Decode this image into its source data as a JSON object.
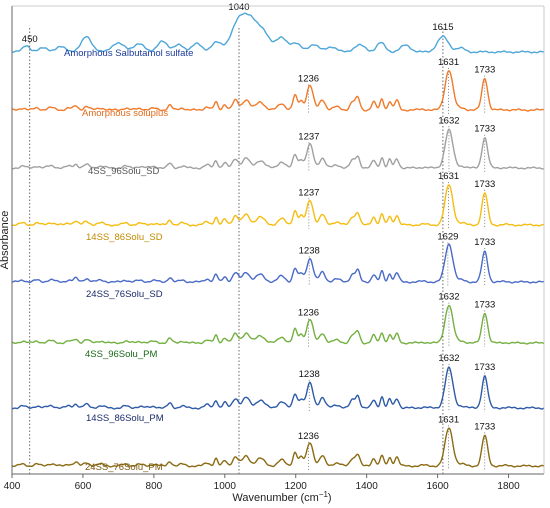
{
  "chart_data": {
    "type": "line",
    "xlabel_prefix": "Wavenumber (cm",
    "xlabel_sup": "−1",
    "xlabel_suffix": ")",
    "ylabel": "Absorbance",
    "xlim": [
      400,
      1900
    ],
    "x_ticks": [
      "400",
      "600",
      "800",
      "1000",
      "1200",
      "1400",
      "1600",
      "1800"
    ],
    "reference_lines": [
      450,
      1040,
      1615
    ],
    "grid": false,
    "legend": "inline labels",
    "series": [
      {
        "name": "Amorphous Salbutamol sulfate",
        "color": "#4da6d8",
        "label_color": "#1a3a9a",
        "peaks": [
          {
            "x": 450,
            "label": "450"
          },
          {
            "x": 1040,
            "label": "1040"
          },
          {
            "x": 1615,
            "label": "1615"
          }
        ]
      },
      {
        "name": "Amorphous soluplus",
        "color": "#f07a2a",
        "label_color": "#e06a1a",
        "peaks": [
          {
            "x": 1236,
            "label": "1236"
          },
          {
            "x": 1631,
            "label": "1631"
          },
          {
            "x": 1733,
            "label": "1733"
          }
        ]
      },
      {
        "name": "4SS_96Solu_SD",
        "color": "#a0a0a0",
        "label_color": "#555555",
        "peaks": [
          {
            "x": 1237,
            "label": "1237"
          },
          {
            "x": 1632,
            "label": "1632"
          },
          {
            "x": 1733,
            "label": "1733"
          }
        ]
      },
      {
        "name": "14SS_86Solu_SD",
        "color": "#f5bd10",
        "label_color": "#c08a00",
        "peaks": [
          {
            "x": 1237,
            "label": "1237"
          },
          {
            "x": 1631,
            "label": "1631"
          },
          {
            "x": 1733,
            "label": "1733"
          }
        ]
      },
      {
        "name": "24SS_76Solu_SD",
        "color": "#4a6ac8",
        "label_color": "#1a2a6a",
        "peaks": [
          {
            "x": 1238,
            "label": "1238"
          },
          {
            "x": 1629,
            "label": "1629"
          },
          {
            "x": 1733,
            "label": "1733"
          }
        ]
      },
      {
        "name": "4SS_96Solu_PM",
        "color": "#72b040",
        "label_color": "#1a6a1a",
        "peaks": [
          {
            "x": 1236,
            "label": "1236"
          },
          {
            "x": 1632,
            "label": "1632"
          },
          {
            "x": 1733,
            "label": "1733"
          }
        ]
      },
      {
        "name": "14SS_86Solu_PM",
        "color": "#2e5aa8",
        "label_color": "#1a2a6a",
        "peaks": [
          {
            "x": 1238,
            "label": "1238"
          },
          {
            "x": 1632,
            "label": "1632"
          },
          {
            "x": 1733,
            "label": "1733"
          }
        ]
      },
      {
        "name": "24SS_76Solu_PM",
        "color": "#8a6a12",
        "label_color": "#7a5a10",
        "peaks": [
          {
            "x": 1236,
            "label": "1236"
          },
          {
            "x": 1631,
            "label": "1631"
          },
          {
            "x": 1733,
            "label": "1733"
          }
        ]
      }
    ]
  }
}
